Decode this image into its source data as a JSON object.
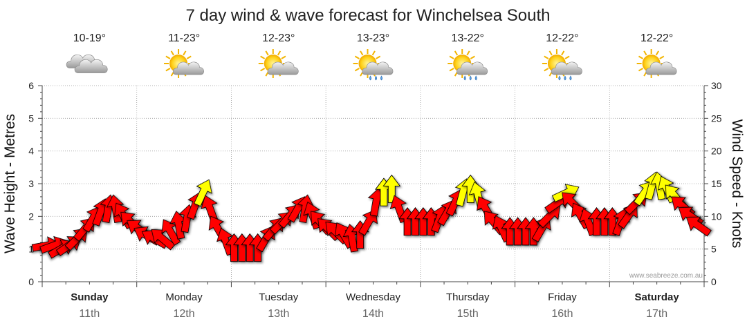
{
  "chart_data": {
    "type": "line",
    "title": "7 day wind & wave forecast for Winchelsea South",
    "ylabel_left": "Wave Height - Metres",
    "ylabel_right": "Wind Speed - Knots",
    "y_left_ticks": [
      "0",
      "1",
      "2",
      "3",
      "4",
      "5",
      "6"
    ],
    "y_right_ticks": [
      "0",
      "5",
      "10",
      "15",
      "20",
      "25",
      "30"
    ],
    "ylim_left": [
      0,
      6
    ],
    "ylim_right": [
      0,
      30
    ],
    "watermark": "www.seabreeze.com.au",
    "days": [
      {
        "name": "Sunday",
        "date": "11th",
        "temp": "10-19°",
        "icon": "cloudy-icon",
        "bold": true
      },
      {
        "name": "Monday",
        "date": "12th",
        "temp": "11-23°",
        "icon": "partly-cloudy-icon",
        "bold": false
      },
      {
        "name": "Tuesday",
        "date": "13th",
        "temp": "12-23°",
        "icon": "partly-cloudy-icon",
        "bold": false
      },
      {
        "name": "Wednesday",
        "date": "14th",
        "temp": "13-23°",
        "icon": "showers-icon",
        "bold": false
      },
      {
        "name": "Thursday",
        "date": "15th",
        "temp": "13-22°",
        "icon": "showers-icon",
        "bold": false
      },
      {
        "name": "Friday",
        "date": "16th",
        "temp": "12-22°",
        "icon": "showers-icon",
        "bold": false
      },
      {
        "name": "Saturday",
        "date": "17th",
        "temp": "12-22°",
        "icon": "partly-cloudy-icon",
        "bold": true
      }
    ],
    "wind_series": {
      "name": "Wind Speed",
      "units": "knots",
      "color_low": "#ff0000",
      "color_high": "#ffff00",
      "points": [
        {
          "day": 0,
          "hour": 0,
          "speed": 5.5,
          "dir": 80
        },
        {
          "day": 0,
          "hour": 2,
          "speed": 5.5,
          "dir": 70
        },
        {
          "day": 0,
          "hour": 4,
          "speed": 5,
          "dir": 60
        },
        {
          "day": 0,
          "hour": 6,
          "speed": 5.5,
          "dir": 55
        },
        {
          "day": 0,
          "hour": 8,
          "speed": 6.5,
          "dir": 45
        },
        {
          "day": 0,
          "hour": 10,
          "speed": 8,
          "dir": 40
        },
        {
          "day": 0,
          "hour": 12,
          "speed": 9.5,
          "dir": 30
        },
        {
          "day": 0,
          "hour": 14,
          "speed": 10.5,
          "dir": 20
        },
        {
          "day": 0,
          "hour": 16,
          "speed": 11,
          "dir": 10
        },
        {
          "day": 0,
          "hour": 18,
          "speed": 11,
          "dir": -10
        },
        {
          "day": 0,
          "hour": 20,
          "speed": 10,
          "dir": -30
        },
        {
          "day": 0,
          "hour": 22,
          "speed": 9,
          "dir": -45
        },
        {
          "day": 1,
          "hour": 0,
          "speed": 8,
          "dir": -55
        },
        {
          "day": 1,
          "hour": 2,
          "speed": 7,
          "dir": -60
        },
        {
          "day": 1,
          "hour": 4,
          "speed": 6.5,
          "dir": -60
        },
        {
          "day": 1,
          "hour": 6,
          "speed": 6.5,
          "dir": -50
        },
        {
          "day": 1,
          "hour": 8,
          "speed": 7.5,
          "dir": -30
        },
        {
          "day": 1,
          "hour": 10,
          "speed": 8.5,
          "dir": -10
        },
        {
          "day": 1,
          "hour": 12,
          "speed": 9.5,
          "dir": 10
        },
        {
          "day": 1,
          "hour": 14,
          "speed": 11.5,
          "dir": 20
        },
        {
          "day": 1,
          "hour": 16,
          "speed": 13.5,
          "dir": 25
        },
        {
          "day": 1,
          "hour": 18,
          "speed": 11,
          "dir": -20
        },
        {
          "day": 1,
          "hour": 20,
          "speed": 8,
          "dir": -30
        },
        {
          "day": 1,
          "hour": 22,
          "speed": 6,
          "dir": -20
        },
        {
          "day": 2,
          "hour": 0,
          "speed": 5,
          "dir": 0
        },
        {
          "day": 2,
          "hour": 2,
          "speed": 5,
          "dir": 0
        },
        {
          "day": 2,
          "hour": 4,
          "speed": 5,
          "dir": 0
        },
        {
          "day": 2,
          "hour": 6,
          "speed": 5,
          "dir": 0
        },
        {
          "day": 2,
          "hour": 8,
          "speed": 6.5,
          "dir": 30
        },
        {
          "day": 2,
          "hour": 10,
          "speed": 8,
          "dir": 40
        },
        {
          "day": 2,
          "hour": 12,
          "speed": 9,
          "dir": 45
        },
        {
          "day": 2,
          "hour": 14,
          "speed": 10,
          "dir": 40
        },
        {
          "day": 2,
          "hour": 16,
          "speed": 11,
          "dir": 30
        },
        {
          "day": 2,
          "hour": 18,
          "speed": 11,
          "dir": 10
        },
        {
          "day": 2,
          "hour": 20,
          "speed": 10,
          "dir": -20
        },
        {
          "day": 2,
          "hour": 22,
          "speed": 9,
          "dir": -40
        },
        {
          "day": 3,
          "hour": 0,
          "speed": 8,
          "dir": -45
        },
        {
          "day": 3,
          "hour": 2,
          "speed": 7.5,
          "dir": -45
        },
        {
          "day": 3,
          "hour": 4,
          "speed": 7,
          "dir": -30
        },
        {
          "day": 3,
          "hour": 6,
          "speed": 6.5,
          "dir": -10
        },
        {
          "day": 3,
          "hour": 8,
          "speed": 7,
          "dir": 0
        },
        {
          "day": 3,
          "hour": 10,
          "speed": 9,
          "dir": 30
        },
        {
          "day": 3,
          "hour": 12,
          "speed": 12,
          "dir": 10
        },
        {
          "day": 3,
          "hour": 14,
          "speed": 13.5,
          "dir": 0
        },
        {
          "day": 3,
          "hour": 16,
          "speed": 14,
          "dir": 0
        },
        {
          "day": 3,
          "hour": 18,
          "speed": 11,
          "dir": -20
        },
        {
          "day": 3,
          "hour": 20,
          "speed": 9,
          "dir": 0
        },
        {
          "day": 3,
          "hour": 22,
          "speed": 9,
          "dir": 0
        },
        {
          "day": 4,
          "hour": 0,
          "speed": 9,
          "dir": 0
        },
        {
          "day": 4,
          "hour": 2,
          "speed": 9,
          "dir": 0
        },
        {
          "day": 4,
          "hour": 4,
          "speed": 9.5,
          "dir": 20
        },
        {
          "day": 4,
          "hour": 6,
          "speed": 10.5,
          "dir": 30
        },
        {
          "day": 4,
          "hour": 8,
          "speed": 12,
          "dir": 25
        },
        {
          "day": 4,
          "hour": 10,
          "speed": 13.5,
          "dir": 15
        },
        {
          "day": 4,
          "hour": 12,
          "speed": 14,
          "dir": 0
        },
        {
          "day": 4,
          "hour": 14,
          "speed": 13,
          "dir": -15
        },
        {
          "day": 4,
          "hour": 16,
          "speed": 11,
          "dir": -30
        },
        {
          "day": 4,
          "hour": 18,
          "speed": 9,
          "dir": -40
        },
        {
          "day": 4,
          "hour": 20,
          "speed": 8,
          "dir": -25
        },
        {
          "day": 4,
          "hour": 22,
          "speed": 7.5,
          "dir": 0
        },
        {
          "day": 5,
          "hour": 0,
          "speed": 7.5,
          "dir": 0
        },
        {
          "day": 5,
          "hour": 2,
          "speed": 7.5,
          "dir": 0
        },
        {
          "day": 5,
          "hour": 4,
          "speed": 7.5,
          "dir": 0
        },
        {
          "day": 5,
          "hour": 6,
          "speed": 8,
          "dir": 30
        },
        {
          "day": 5,
          "hour": 8,
          "speed": 10,
          "dir": 45
        },
        {
          "day": 5,
          "hour": 10,
          "speed": 12,
          "dir": 55
        },
        {
          "day": 5,
          "hour": 12,
          "speed": 13.5,
          "dir": 65
        },
        {
          "day": 5,
          "hour": 14,
          "speed": 12,
          "dir": -45
        },
        {
          "day": 5,
          "hour": 16,
          "speed": 10,
          "dir": -30
        },
        {
          "day": 5,
          "hour": 18,
          "speed": 9,
          "dir": -20
        },
        {
          "day": 5,
          "hour": 20,
          "speed": 9,
          "dir": 0
        },
        {
          "day": 5,
          "hour": 22,
          "speed": 9,
          "dir": 0
        },
        {
          "day": 6,
          "hour": 0,
          "speed": 9,
          "dir": 0
        },
        {
          "day": 6,
          "hour": 2,
          "speed": 9,
          "dir": 20
        },
        {
          "day": 6,
          "hour": 4,
          "speed": 10,
          "dir": 35
        },
        {
          "day": 6,
          "hour": 6,
          "speed": 12,
          "dir": 45
        },
        {
          "day": 6,
          "hour": 8,
          "speed": 13.5,
          "dir": 35
        },
        {
          "day": 6,
          "hour": 10,
          "speed": 14.5,
          "dir": 15
        },
        {
          "day": 6,
          "hour": 12,
          "speed": 14.5,
          "dir": -10
        },
        {
          "day": 6,
          "hour": 14,
          "speed": 14,
          "dir": -25
        },
        {
          "day": 6,
          "hour": 16,
          "speed": 13,
          "dir": -40
        },
        {
          "day": 6,
          "hour": 18,
          "speed": 11.5,
          "dir": -50
        },
        {
          "day": 6,
          "hour": 20,
          "speed": 10,
          "dir": -55
        },
        {
          "day": 6,
          "hour": 22,
          "speed": 8.5,
          "dir": -55
        }
      ]
    }
  }
}
